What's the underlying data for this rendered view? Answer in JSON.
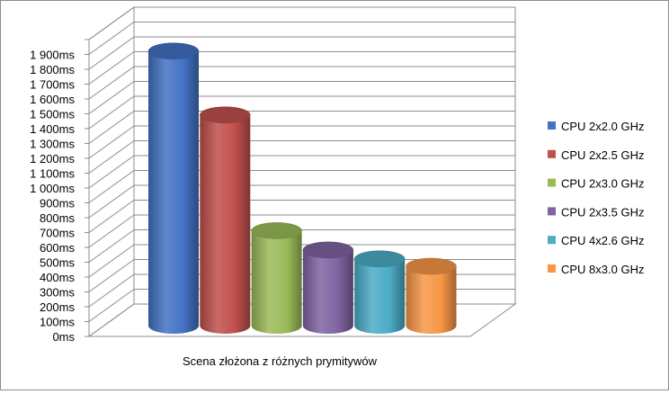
{
  "chart_data": {
    "type": "bar",
    "style": "3d-cylinder",
    "categories": [
      "Scena złożona z różnych prymitywów"
    ],
    "series": [
      {
        "name": "CPU 2x2.0 GHz",
        "values": [
          1850
        ],
        "color": "#4472C4"
      },
      {
        "name": "CPU 2x2.5 GHz",
        "values": [
          1420
        ],
        "color": "#C0504D"
      },
      {
        "name": "CPU 2x3.0 GHz",
        "values": [
          640
        ],
        "color": "#9BBB59"
      },
      {
        "name": "CPU 2x3.5 GHz",
        "values": [
          510
        ],
        "color": "#8064A2"
      },
      {
        "name": "CPU 4x2.6 GHz",
        "values": [
          450
        ],
        "color": "#4BACC6"
      },
      {
        "name": "CPU 8x3.0 GHz",
        "values": [
          400
        ],
        "color": "#F79646"
      }
    ],
    "yticks": [
      "0ms",
      "100ms",
      "200ms",
      "300ms",
      "400ms",
      "500ms",
      "600ms",
      "700ms",
      "800ms",
      "900ms",
      "1 000ms",
      "1 100ms",
      "1 200ms",
      "1 300ms",
      "1 400ms",
      "1 500ms",
      "1 600ms",
      "1 700ms",
      "1 800ms",
      "1 900ms"
    ],
    "ylim": [
      0,
      2000
    ],
    "grid": true,
    "legend_position": "right",
    "xlabel": "",
    "ylabel": "",
    "title": ""
  }
}
